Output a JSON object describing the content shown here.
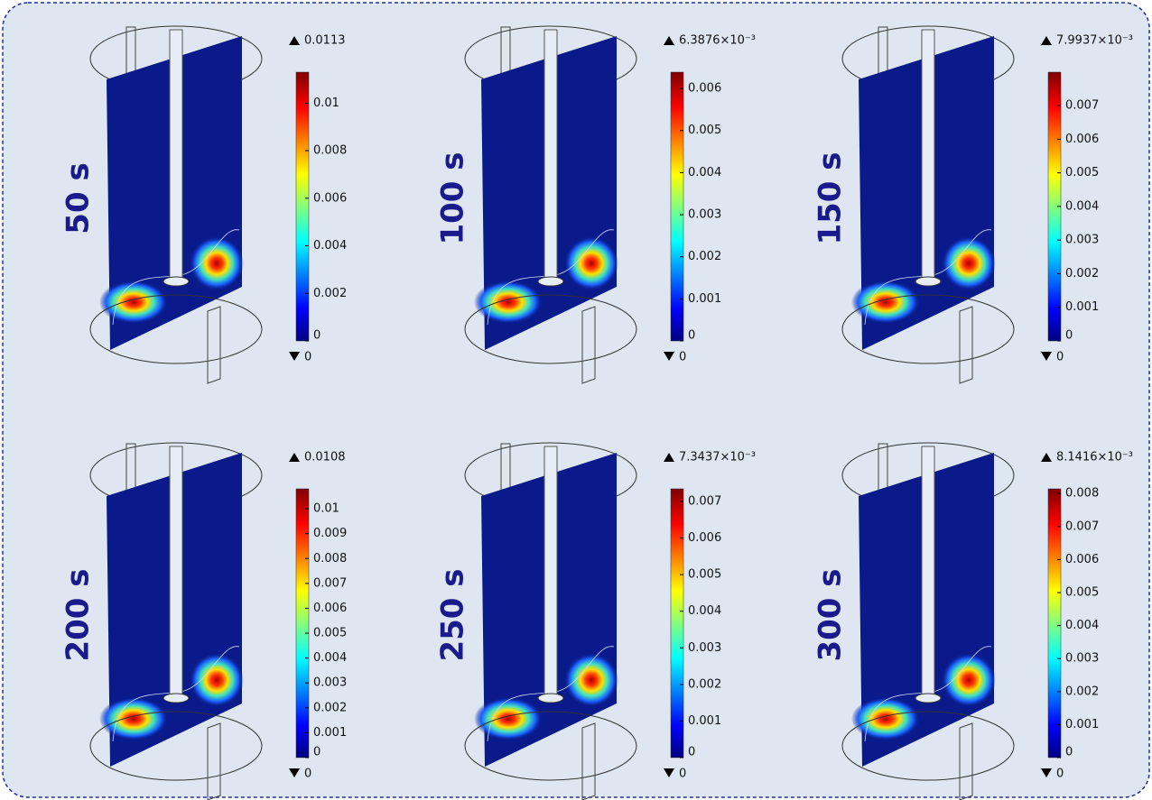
{
  "panels": [
    {
      "time": "50 s",
      "max": 0.0113,
      "min": 0,
      "ticks": [
        0,
        0.002,
        0.004,
        0.006,
        0.008,
        0.01
      ]
    },
    {
      "time": "100 s",
      "max": {
        "value": 0.0063876,
        "label": "6.3876×10⁻³"
      },
      "min": 0,
      "ticks": [
        0,
        0.001,
        0.002,
        0.003,
        0.004,
        0.005,
        0.006
      ]
    },
    {
      "time": "150 s",
      "max": {
        "value": 0.0079937,
        "label": "7.9937×10⁻³"
      },
      "min": 0,
      "ticks": [
        0,
        0.001,
        0.002,
        0.003,
        0.004,
        0.005,
        0.006,
        0.007
      ]
    },
    {
      "time": "200 s",
      "max": 0.0108,
      "min": 0,
      "ticks": [
        0,
        0.001,
        0.002,
        0.003,
        0.004,
        0.005,
        0.006,
        0.007,
        0.008,
        0.009,
        0.01
      ]
    },
    {
      "time": "250 s",
      "max": {
        "value": 0.0073437,
        "label": "7.3437×10⁻³"
      },
      "min": 0,
      "ticks": [
        0,
        0.001,
        0.002,
        0.003,
        0.004,
        0.005,
        0.006,
        0.007
      ]
    },
    {
      "time": "300 s",
      "max": {
        "value": 0.0081416,
        "label": "8.1416×10⁻³"
      },
      "min": 0,
      "ticks": [
        0,
        0.001,
        0.002,
        0.003,
        0.004,
        0.005,
        0.006,
        0.007,
        0.008
      ]
    }
  ]
}
